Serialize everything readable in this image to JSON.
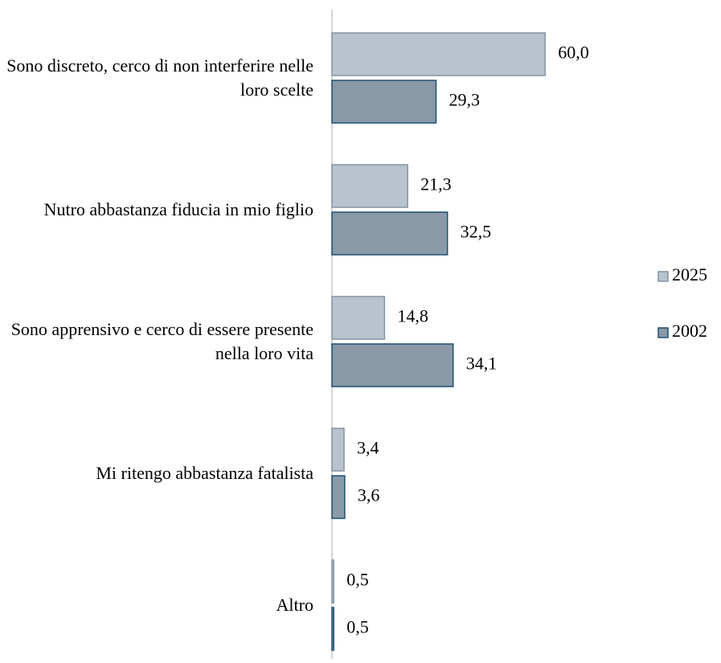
{
  "chart_data": {
    "type": "bar",
    "orientation": "horizontal",
    "categories": [
      "Sono discreto, cerco di non interferire nelle loro scelte",
      "Nutro abbastanza fiducia in mio figlio",
      "Sono apprensivo e cerco di essere presente nella loro vita",
      "Mi ritengo abbastanza fatalista",
      "Altro"
    ],
    "series": [
      {
        "name": "2025",
        "color": "#b9c3cd",
        "stroke": "#8494a4",
        "values": [
          60.0,
          21.3,
          14.8,
          3.4,
          0.5
        ],
        "value_labels": [
          "60,0",
          "21,3",
          "14,8",
          "3,4",
          "0,5"
        ]
      },
      {
        "name": "2002",
        "color": "#8999a8",
        "stroke": "#1f4f70",
        "values": [
          29.3,
          32.5,
          34.1,
          3.6,
          0.5
        ],
        "value_labels": [
          "29,3",
          "32,5",
          "34,1",
          "3,6",
          "0,5"
        ]
      }
    ],
    "legend": "right"
  }
}
